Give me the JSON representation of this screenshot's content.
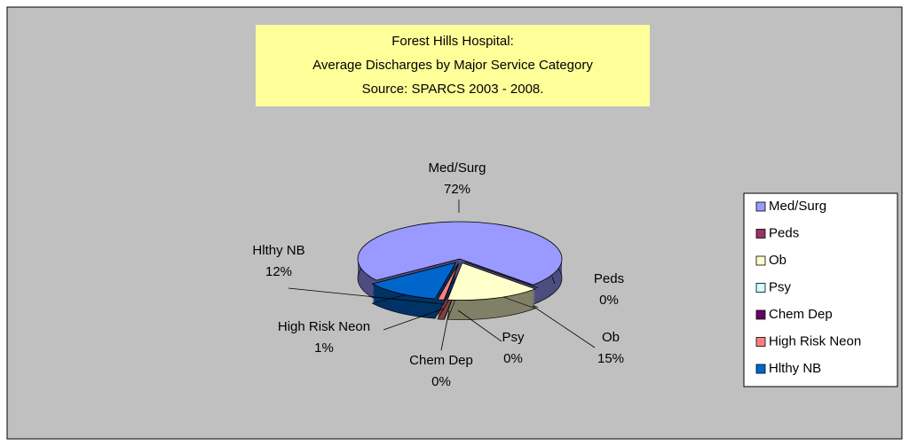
{
  "chart_data": {
    "type": "pie",
    "title": [
      "Forest Hills Hospital:",
      "Average Discharges by Major Service Category",
      "Source: SPARCS 2003 - 2008."
    ],
    "categories": [
      "Med/Surg",
      "Peds",
      "Ob",
      "Psy",
      "Chem Dep",
      "High Risk Neon",
      "Hlthy NB"
    ],
    "values": [
      72,
      0,
      15,
      0,
      0,
      1,
      12
    ],
    "value_labels": [
      "72%",
      "0%",
      "15%",
      "0%",
      "0%",
      "1%",
      "12%"
    ],
    "colors": [
      "#9999ff",
      "#993366",
      "#ffffcc",
      "#ccffff",
      "#660066",
      "#ff8080",
      "#0066cc"
    ],
    "legend": "right"
  }
}
